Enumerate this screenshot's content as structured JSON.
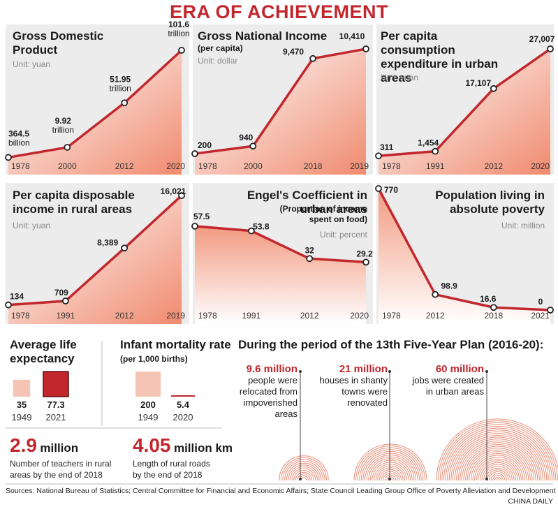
{
  "title": "ERA OF ACHIEVEMENT",
  "chart_data": [
    {
      "type": "area",
      "title": "Gross Domestic Product",
      "subtitle": "",
      "unit": "Unit: yuan",
      "x": [
        "1978",
        "2000",
        "2012",
        "2020"
      ],
      "values": [
        0.3645,
        9.92,
        51.95,
        101.6
      ],
      "labels": [
        "364.5 billion",
        "9.92 trillion",
        "51.95 trillion",
        "101.6 trillion"
      ]
    },
    {
      "type": "area",
      "title": "Gross National Income",
      "subtitle": "(per capita)",
      "unit": "Unit: dollar",
      "x": [
        "1978",
        "2000",
        "2018",
        "2019"
      ],
      "values": [
        200,
        940,
        9470,
        10410
      ],
      "labels": [
        "200",
        "940",
        "9,470",
        "10,410"
      ]
    },
    {
      "type": "area",
      "title": "Per capita consumption expenditure in urban areas",
      "subtitle": "",
      "unit": "Unit: yuan",
      "x": [
        "1978",
        "1991",
        "2012",
        "2020"
      ],
      "values": [
        311,
        1454,
        17107,
        27007
      ],
      "labels": [
        "311",
        "1,454",
        "17,107",
        "27,007"
      ]
    },
    {
      "type": "area",
      "title": "Per capita disposable income in rural areas",
      "subtitle": "",
      "unit": "Unit: yuan",
      "x": [
        "1978",
        "1991",
        "2012",
        "2019"
      ],
      "values": [
        134,
        709,
        8389,
        16021
      ],
      "labels": [
        "134",
        "709",
        "8,389",
        "16,021"
      ]
    },
    {
      "type": "area",
      "title": "Engel's Coefficient in urban areas",
      "subtitle": "(Proportion of income spent on food)",
      "unit": "Unit: percent",
      "x": [
        "1978",
        "1991",
        "2012",
        "2020"
      ],
      "values": [
        57.5,
        53.8,
        32,
        29.2
      ],
      "labels": [
        "57.5",
        "53.8",
        "32",
        "29.2"
      ]
    },
    {
      "type": "area",
      "title": "Population living in absolute poverty",
      "subtitle": "",
      "unit": "Unit: million",
      "x": [
        "1978",
        "2012",
        "2018",
        "2021"
      ],
      "values": [
        770,
        98.9,
        16.6,
        0
      ],
      "labels": [
        "770",
        "98.9",
        "16.6",
        "0"
      ]
    },
    {
      "type": "bar",
      "title": "Average life expectancy",
      "categories": [
        "1949",
        "2021"
      ],
      "values": [
        35,
        77.3
      ],
      "labels": [
        "35",
        "77.3"
      ]
    },
    {
      "type": "bar",
      "title": "Infant mortality rate",
      "subtitle": "(per 1,000 births)",
      "categories": [
        "1949",
        "2020"
      ],
      "values": [
        200,
        5.4
      ],
      "labels": [
        "200",
        "5.4"
      ]
    }
  ],
  "plan": {
    "heading": "During the period of the 13th Five-Year Plan (2016-20):",
    "items": [
      {
        "value": "9.6 million",
        "value_num": 9.6,
        "desc": [
          "people were",
          "relocated from",
          "impoverished",
          "areas"
        ]
      },
      {
        "value": "21 million",
        "value_num": 21,
        "desc": [
          "houses in shanty",
          "towns were",
          "renovated"
        ]
      },
      {
        "value": "60 million",
        "value_num": 60,
        "desc": [
          "jobs were created",
          "in urban areas"
        ]
      }
    ]
  },
  "facts": [
    {
      "value": "2.9",
      "unit": "million",
      "desc": [
        "Number of teachers in rural",
        "areas by the end of 2018"
      ]
    },
    {
      "value": "4.05",
      "unit": "million km",
      "desc": [
        "Length of rural roads",
        "by the end of 2018"
      ]
    }
  ],
  "sources": "Sources: National Bureau of Statistics; Central Committee for Financial and Economic Affairs; State Council Leading Group Office of Poverty Alleviation and Development",
  "credit": "CHINA DAILY",
  "colors": {
    "accent": "#c1272d",
    "panel": "#ececec",
    "fill_light": "#f6c4b4",
    "fill_dark": "#c1272d"
  }
}
